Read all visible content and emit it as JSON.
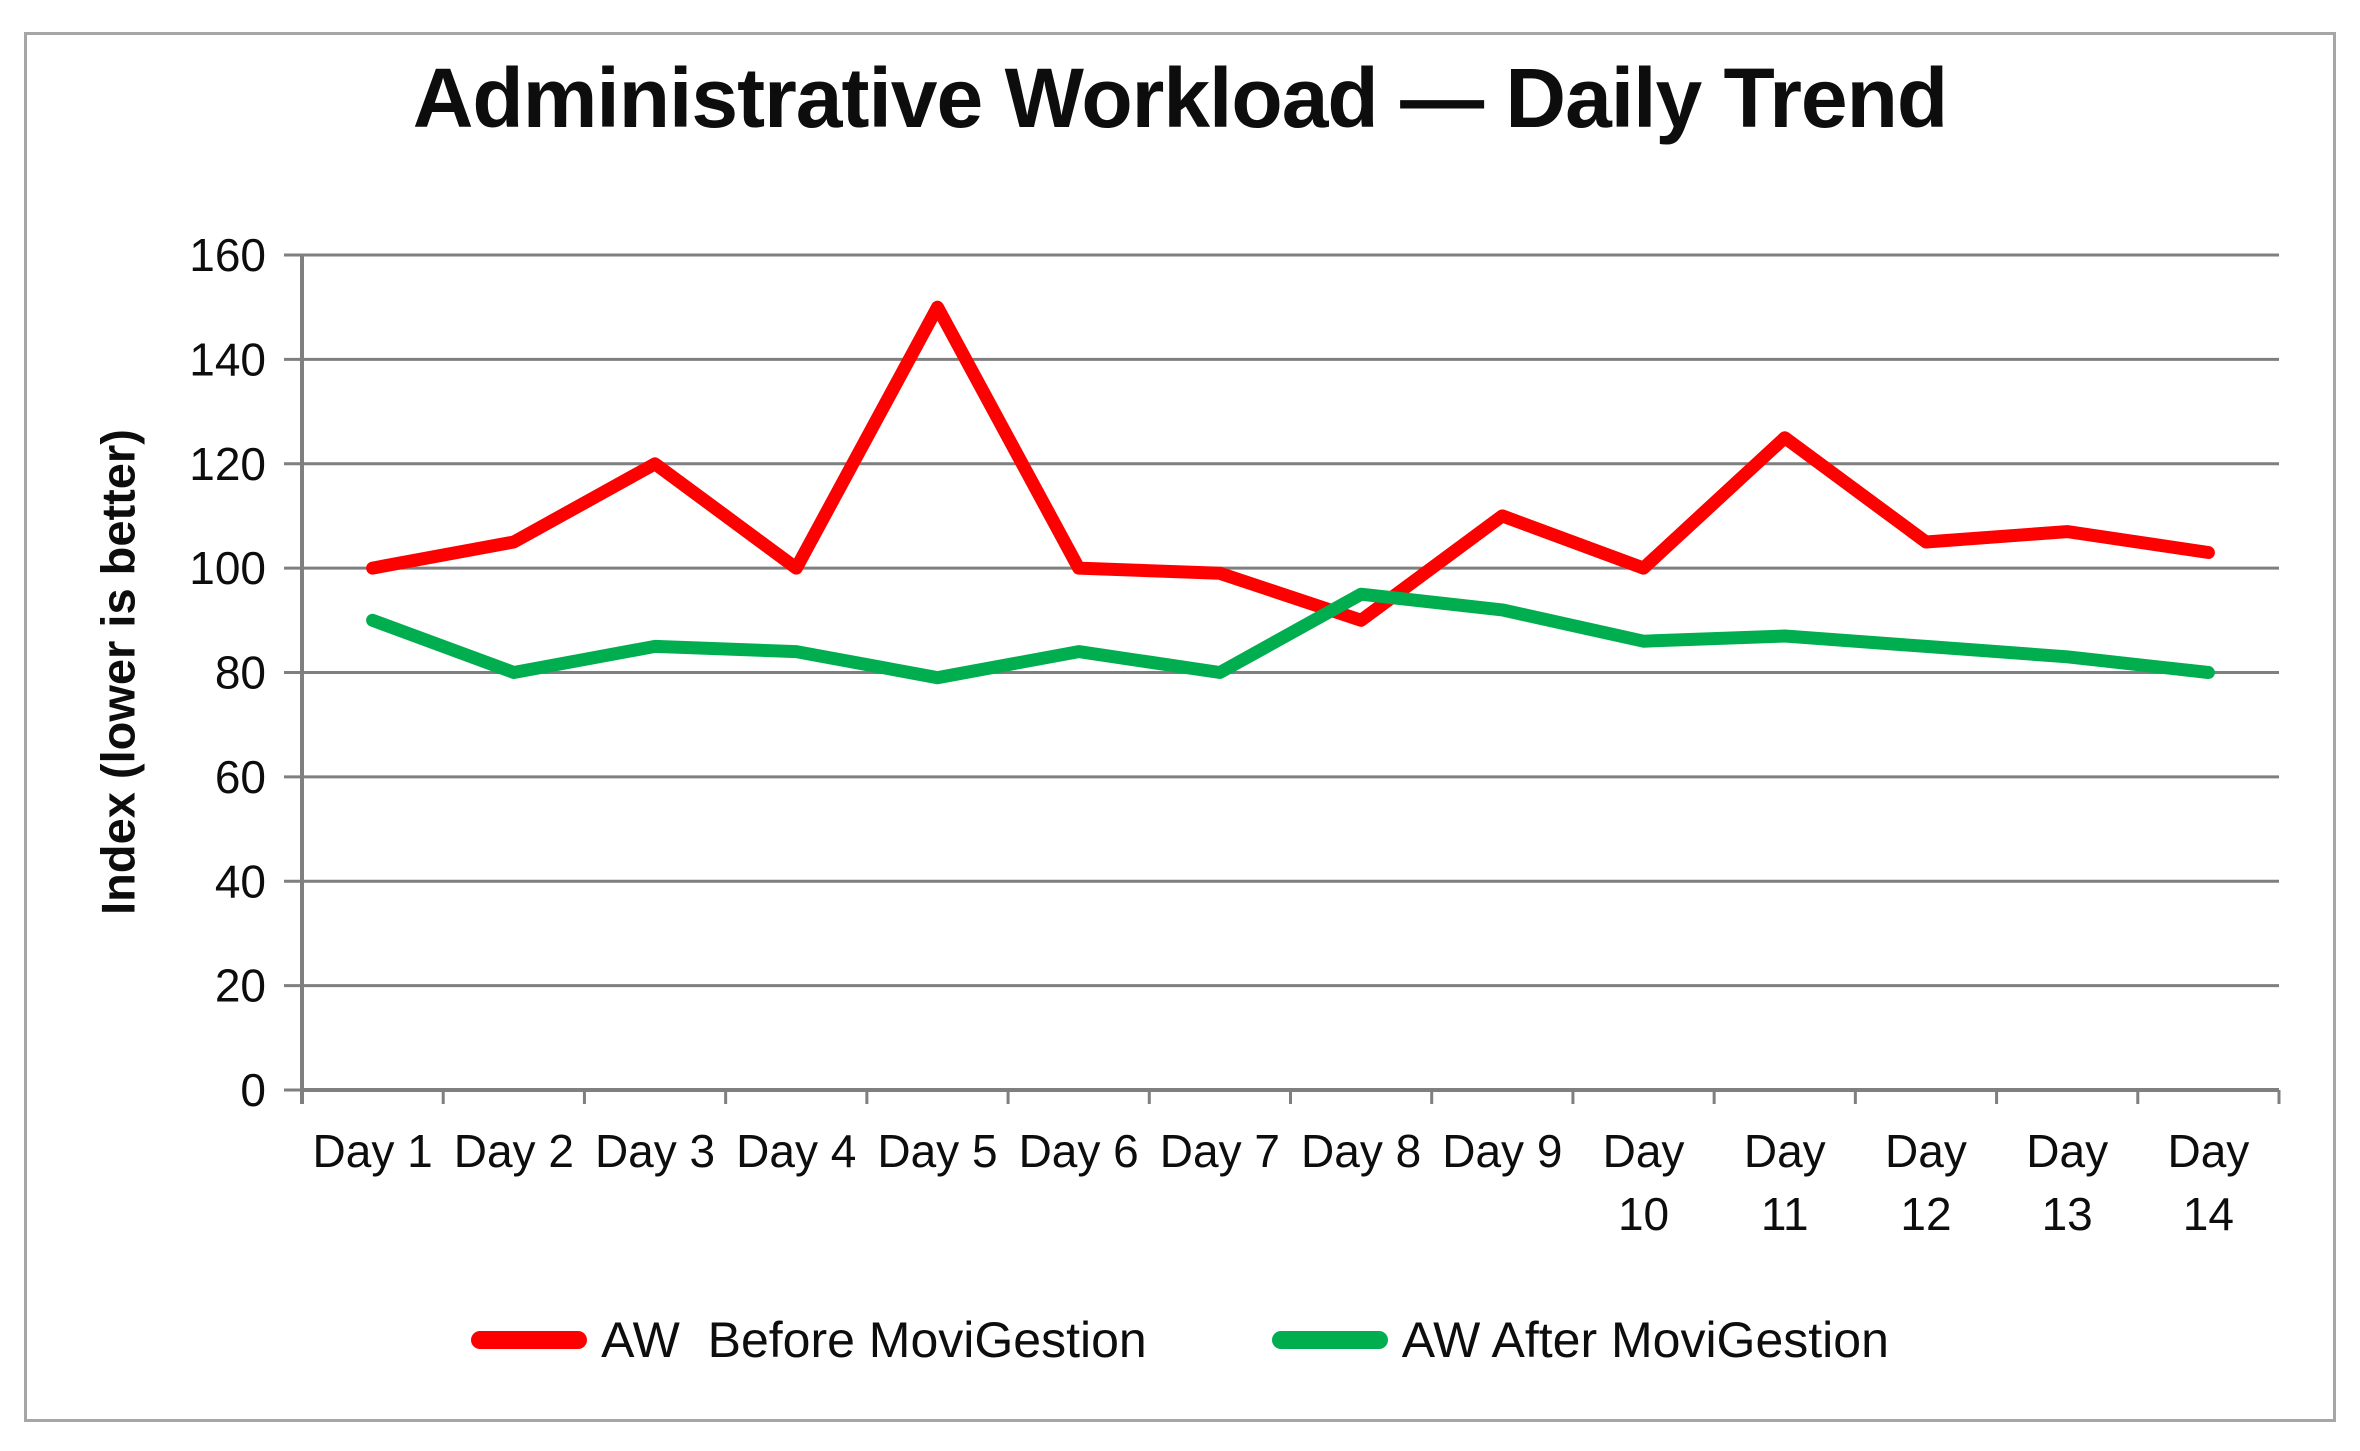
{
  "chart_data": {
    "type": "line",
    "title": "Administrative Workload — Daily Trend",
    "xlabel": "",
    "ylabel": "Index (lower is better)",
    "categories": [
      "Day 1",
      "Day 2",
      "Day 3",
      "Day 4",
      "Day 5",
      "Day 6",
      "Day 7",
      "Day 8",
      "Day 9",
      "Day 10",
      "Day 11",
      "Day 12",
      "Day 13",
      "Day 14"
    ],
    "ylim": [
      0,
      160
    ],
    "ytick_step": 20,
    "grid": true,
    "legend_position": "bottom",
    "colors": {
      "before": "#fe0000",
      "after": "#00ae4f",
      "gridline": "#7f7f7f",
      "axis": "#7f7f7f",
      "frame_border": "#a6a6a6",
      "text": "#0d0d0d"
    },
    "series": [
      {
        "name": "AW  Before MoviGestion",
        "key": "before",
        "values": [
          100,
          105,
          120,
          100,
          150,
          100,
          99,
          90,
          110,
          100,
          125,
          105,
          107,
          103
        ]
      },
      {
        "name": "AW After MoviGestion",
        "key": "after",
        "values": [
          90,
          80,
          85,
          84,
          79,
          84,
          80,
          95,
          92,
          86,
          87,
          85,
          83,
          80
        ]
      }
    ]
  }
}
